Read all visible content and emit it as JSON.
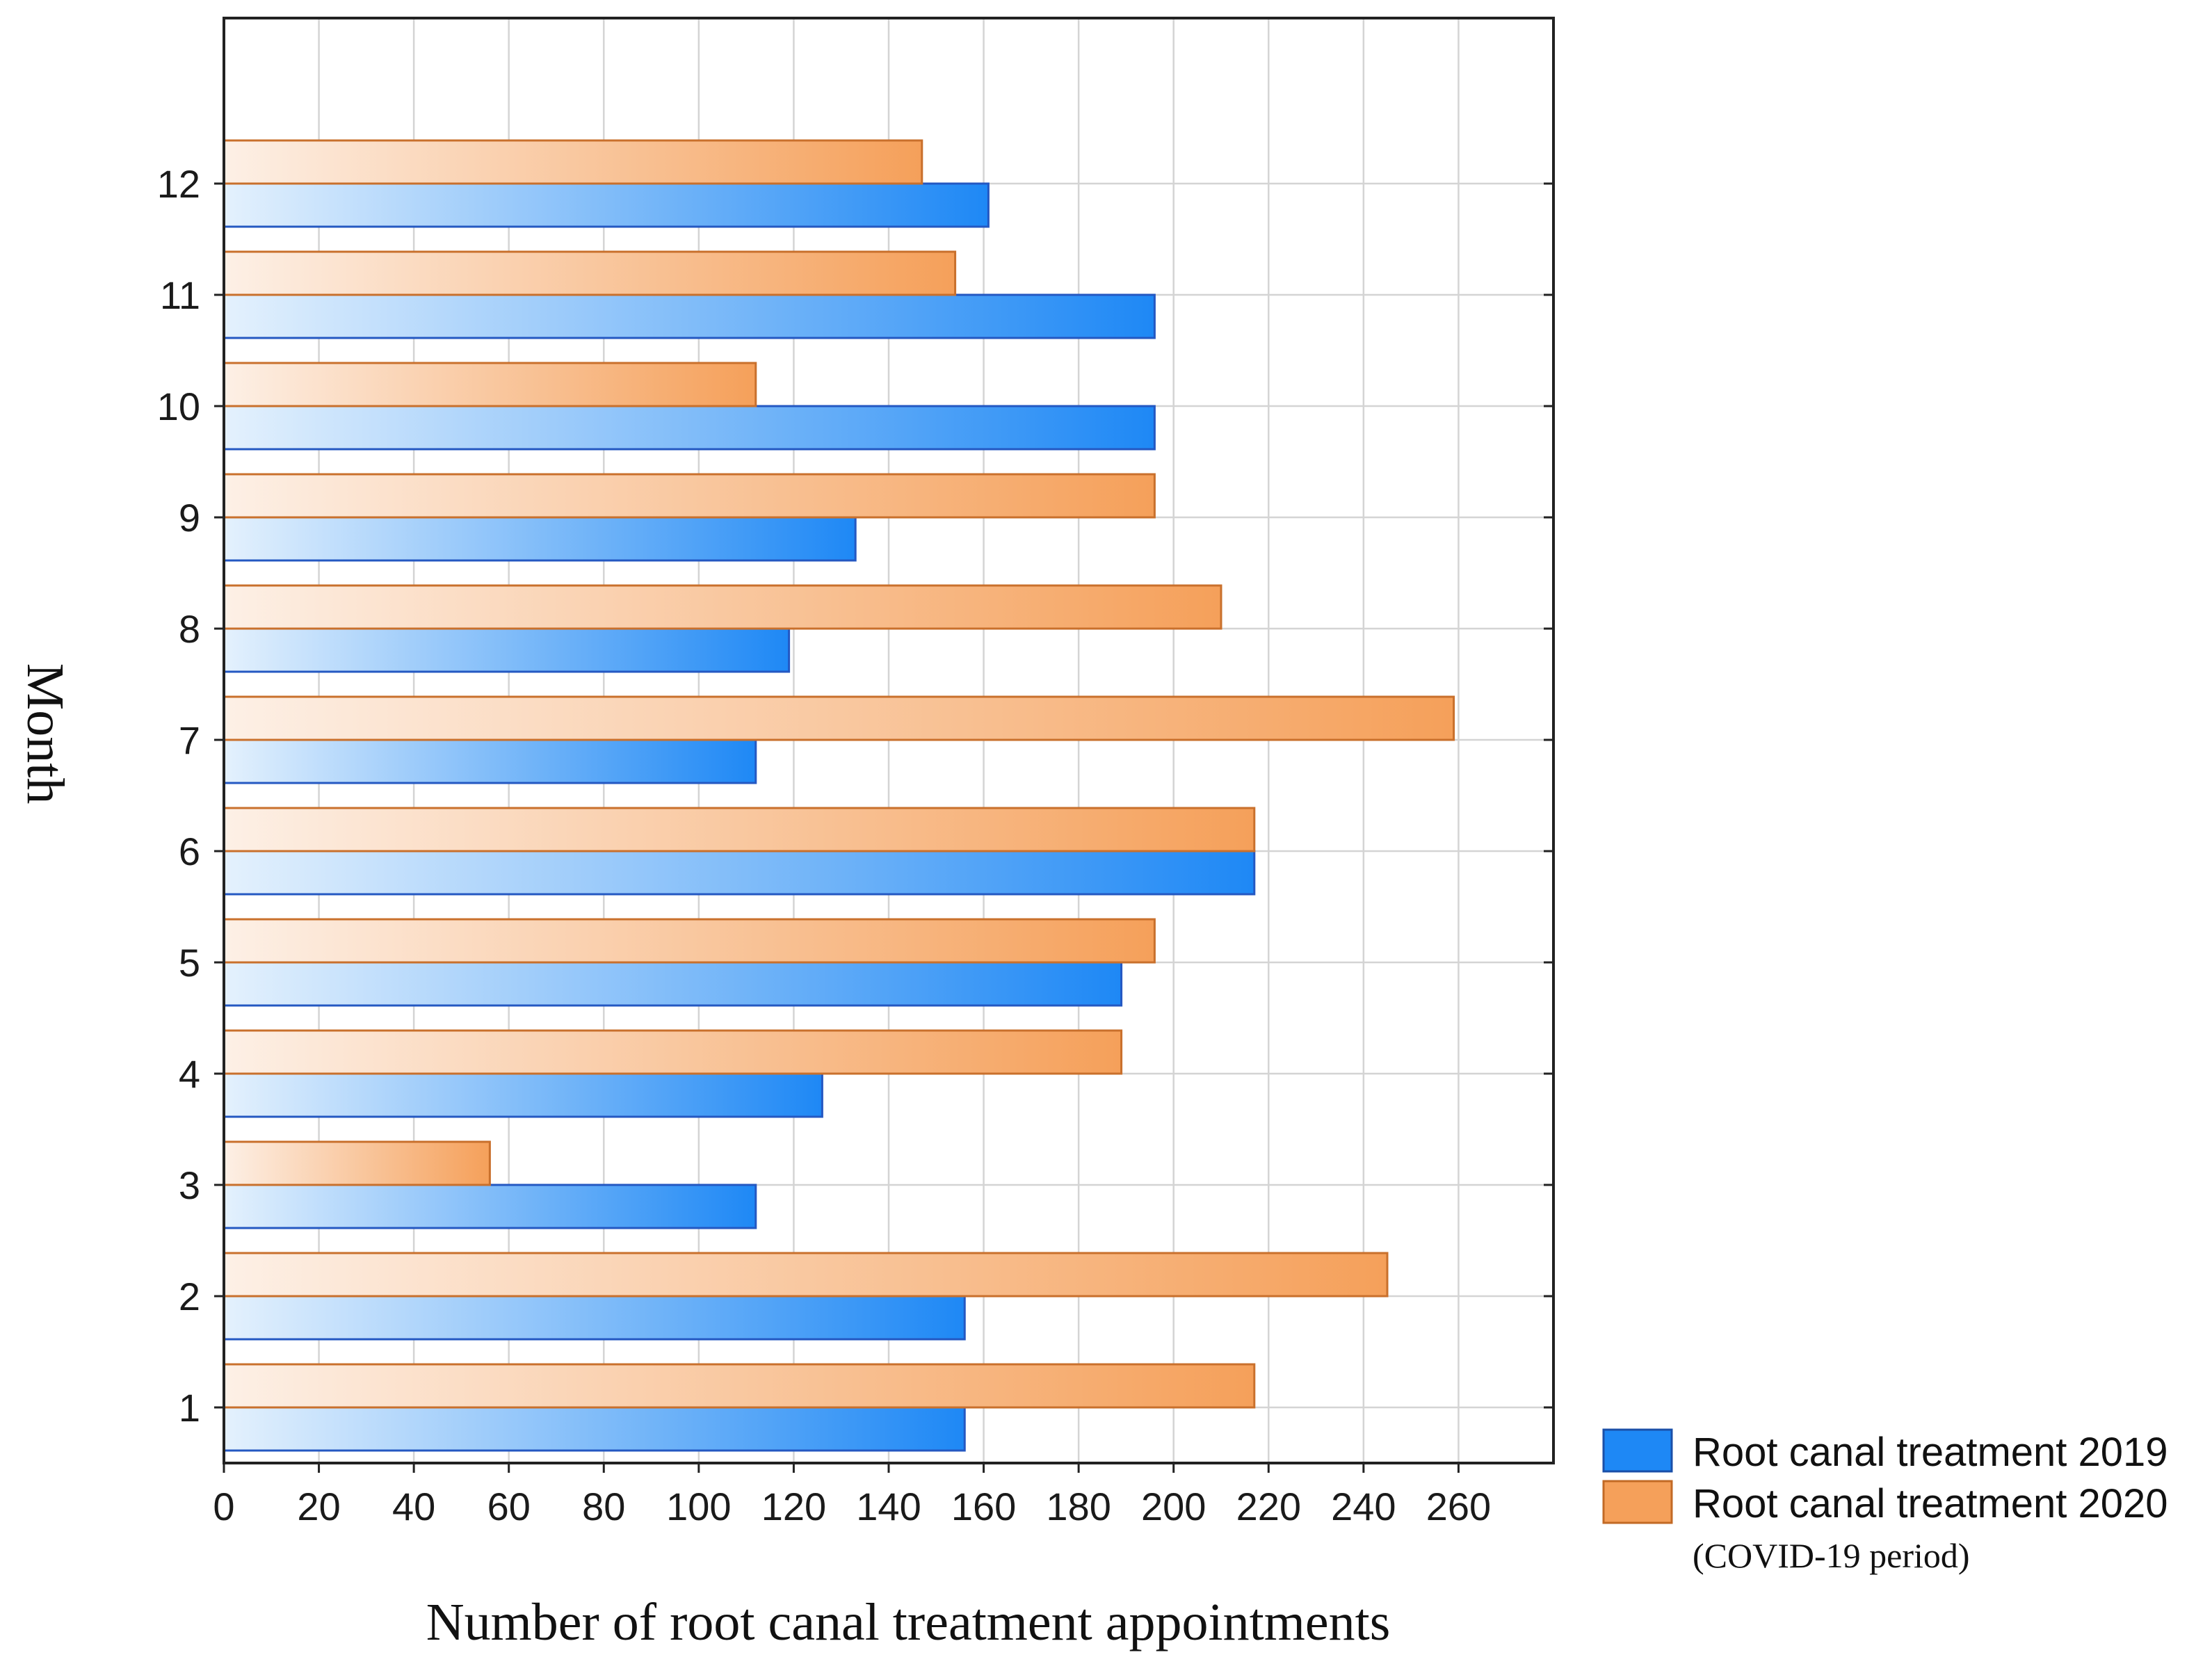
{
  "chart_data": {
    "type": "bar",
    "orientation": "horizontal",
    "title": "",
    "xlabel": "Number of root canal treatment appointments",
    "ylabel": "Month",
    "categories": [
      "1",
      "2",
      "3",
      "4",
      "5",
      "6",
      "7",
      "8",
      "9",
      "10",
      "11",
      "12"
    ],
    "series": [
      {
        "name": "Root canal treatment 2019",
        "color": "#1e88f5",
        "values": [
          156,
          156,
          112,
          126,
          189,
          217,
          112,
          119,
          133,
          196,
          196,
          161
        ]
      },
      {
        "name": "Root canal treatment 2020",
        "note": "(COVID-19 period)",
        "color": "#f5a05a",
        "values": [
          217,
          245,
          56,
          189,
          196,
          217,
          259,
          210,
          196,
          112,
          154,
          147
        ]
      }
    ],
    "xlim": [
      0,
      280
    ],
    "xticks": [
      "0",
      "20",
      "40",
      "60",
      "80",
      "100",
      "120",
      "140",
      "160",
      "180",
      "200",
      "220",
      "240",
      "260"
    ],
    "grid": true,
    "legend_position": "bottom-right"
  }
}
